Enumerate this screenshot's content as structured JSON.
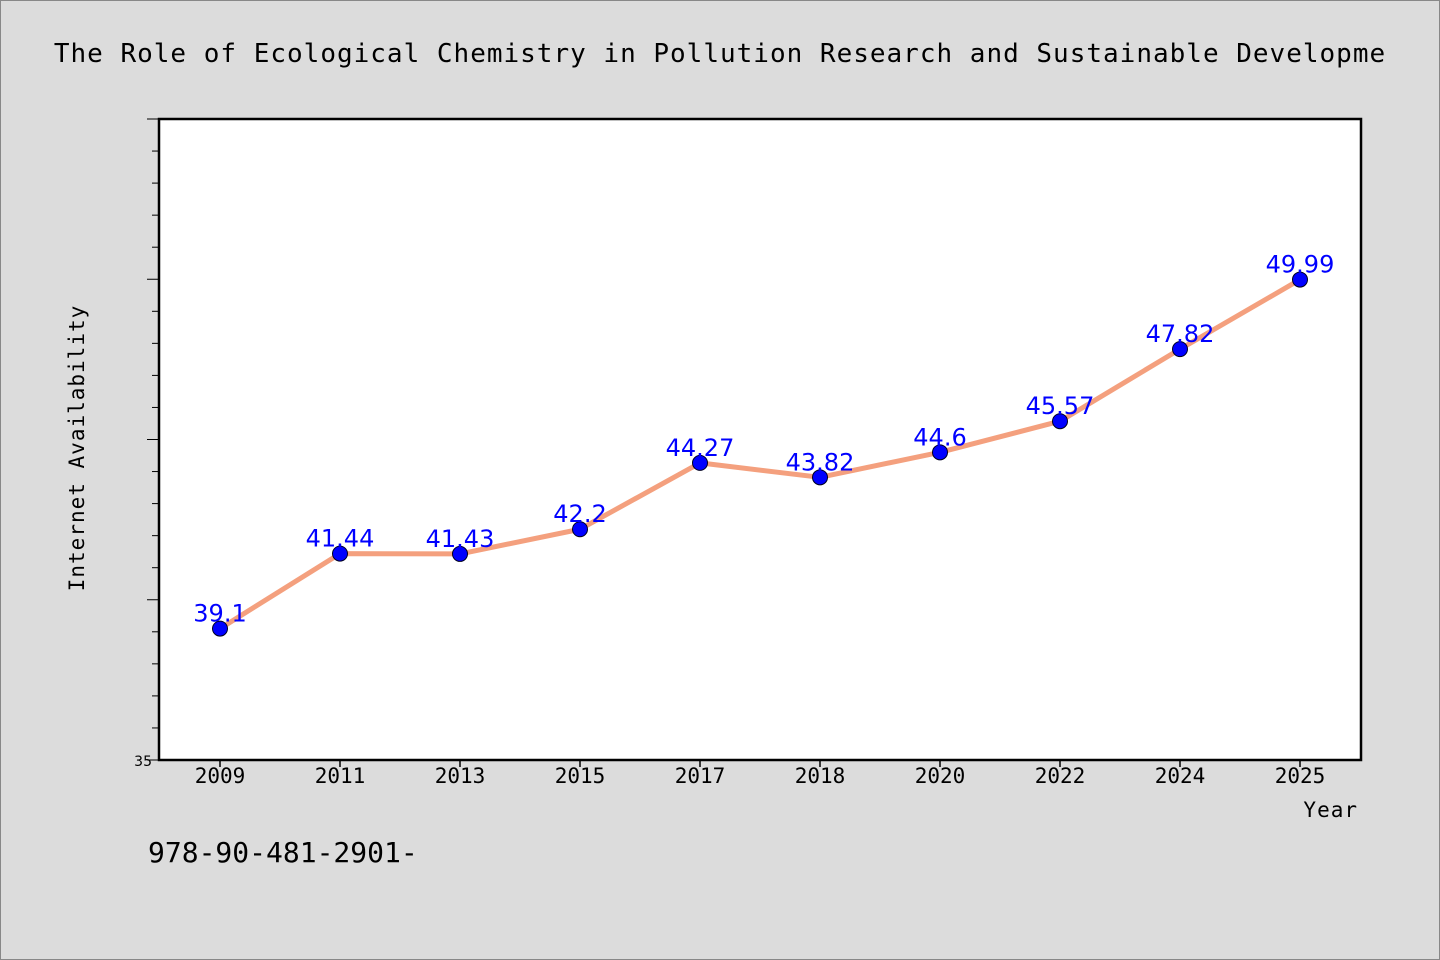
{
  "chart_data": {
    "type": "line",
    "title": "The Role of Ecological Chemistry in Pollution Research and Sustainable Developme",
    "xlabel": "Year",
    "ylabel": "Internet Availability",
    "categories": [
      "2009",
      "2011",
      "2013",
      "2015",
      "2017",
      "2018",
      "2020",
      "2022",
      "2024",
      "2025"
    ],
    "series": [
      {
        "values": [
          39.1,
          41.44,
          41.43,
          42.2,
          44.27,
          43.82,
          44.6,
          45.57,
          47.82,
          49.99
        ],
        "labels": [
          "39.1",
          "41.44",
          "41.43",
          "42.2",
          "44.27",
          "43.82",
          "44.6",
          "45.57",
          "47.82",
          "49.99"
        ]
      }
    ],
    "ylim": [
      35,
      55
    ],
    "yticks_labeled": [
      "35"
    ],
    "grid": false,
    "legend": "none",
    "line_color": "#f4a07e",
    "marker_color": "#0000ff",
    "data_label_color": "#0000ff",
    "background_color": "#dcdcdc",
    "plot_background_color": "#ffffff"
  },
  "footer_text": "978-90-481-2901-"
}
